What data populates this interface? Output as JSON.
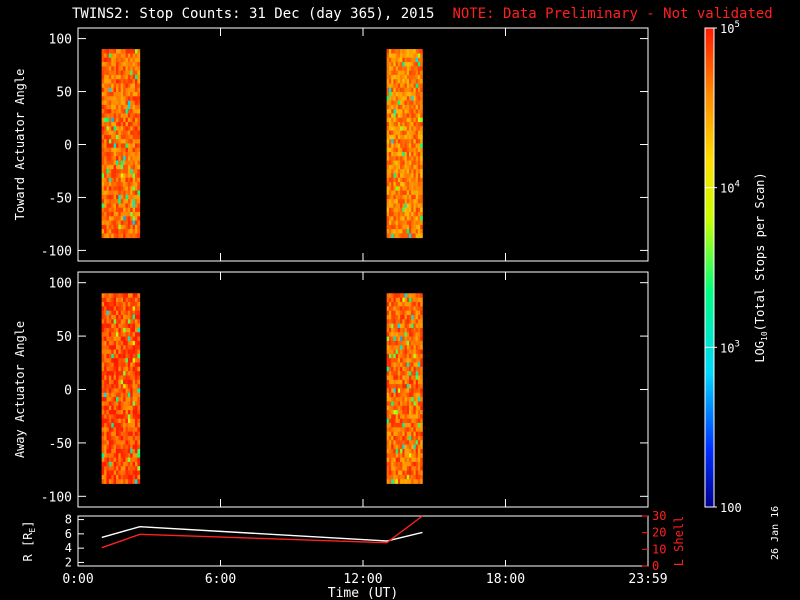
{
  "title": {
    "main": "TWINS2: Stop Counts: 31 Dec (day 365), 2015",
    "note": "NOTE: Data Preliminary - Not validated"
  },
  "side_date": "26 Jan 16",
  "colors": {
    "background": "#000000",
    "axes": "#ffffff",
    "note": "#ff2020",
    "lshell": "#ff2020"
  },
  "chart_data": [
    {
      "id": "toward",
      "type": "heatmap",
      "ylabel": "Toward Actuator Angle",
      "ylim": [
        -110,
        110
      ],
      "yticks": [
        100,
        50,
        0,
        -50,
        -100
      ],
      "ytick_labels": [
        "100",
        "50",
        "0",
        "-50",
        "-100"
      ],
      "xlim": [
        0,
        24
      ],
      "colorscale": "log10 counts",
      "data_blocks": [
        {
          "t_start": 1.0,
          "t_end": 2.6,
          "angle_min": -88,
          "angle_max": 90,
          "level": 4.7
        },
        {
          "t_start": 13.0,
          "t_end": 14.5,
          "angle_min": -88,
          "angle_max": 90,
          "level": 4.6
        }
      ]
    },
    {
      "id": "away",
      "type": "heatmap",
      "ylabel": "Away Actuator Angle",
      "ylim": [
        -110,
        110
      ],
      "yticks": [
        100,
        50,
        0,
        -50,
        -100
      ],
      "ytick_labels": [
        "100",
        "50",
        "0",
        "-50",
        "-100"
      ],
      "xlim": [
        0,
        24
      ],
      "colorscale": "log10 counts",
      "data_blocks": [
        {
          "t_start": 1.0,
          "t_end": 2.6,
          "angle_min": -88,
          "angle_max": 90,
          "level": 4.8
        },
        {
          "t_start": 13.0,
          "t_end": 14.5,
          "angle_min": -88,
          "angle_max": 90,
          "level": 4.7
        }
      ]
    },
    {
      "id": "orbit",
      "type": "line",
      "ylabel": "R [R",
      "ylabel_sub": "E",
      "ylabel_end": "]",
      "ylim": [
        1.5,
        8.5
      ],
      "yticks": [
        2,
        4,
        6,
        8
      ],
      "ytick_labels": [
        "2",
        "4",
        "6",
        "8"
      ],
      "y2label": "L Shell",
      "y2lim": [
        0,
        30
      ],
      "y2ticks": [
        0,
        10,
        20,
        30
      ],
      "y2tick_labels": [
        "0",
        "10",
        "20",
        "30"
      ],
      "xlim": [
        0,
        24
      ],
      "xticks": [
        0,
        6,
        12,
        18,
        24
      ],
      "xtick_labels": [
        "0:00",
        "6:00",
        "12:00",
        "18:00",
        "23:59"
      ],
      "xlabel": "Time (UT)",
      "series": [
        {
          "axis": "left",
          "color": "#ffffff",
          "x": [
            1.0,
            2.6,
            13.0,
            14.5
          ],
          "y": [
            5.5,
            7.0,
            5.0,
            6.2
          ]
        },
        {
          "axis": "right",
          "color": "#ff2020",
          "x": [
            1.0,
            2.6,
            13.0,
            14.5
          ],
          "y": [
            11,
            19,
            14,
            31
          ]
        }
      ]
    }
  ],
  "colorbar": {
    "label": "LOG",
    "label_sub": "10",
    "label_rest": "(Total Stops per Scan)",
    "range": [
      2,
      5
    ],
    "ticks": [
      {
        "v": 5,
        "base": "10",
        "exp": "5"
      },
      {
        "v": 4,
        "base": "10",
        "exp": "4"
      },
      {
        "v": 3,
        "base": "10",
        "exp": "3"
      },
      {
        "v": 2,
        "base": "100",
        "exp": ""
      }
    ]
  }
}
